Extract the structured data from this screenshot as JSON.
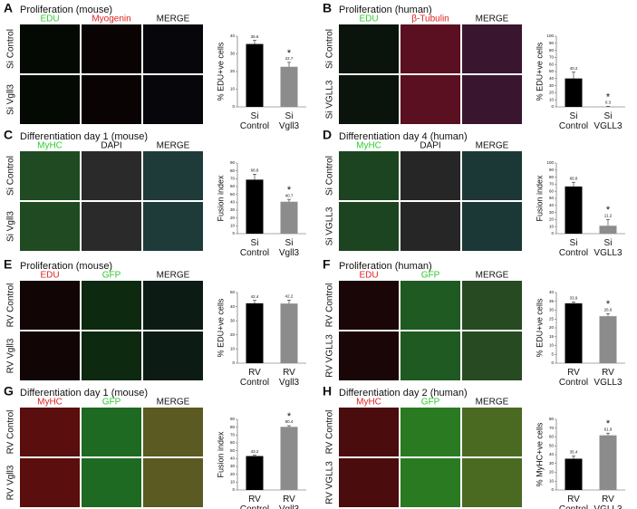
{
  "chart_data": [
    {
      "type": "bar",
      "panel": "A",
      "title": "Proliferation (mouse)",
      "image_columns": [
        {
          "label": "EDU",
          "color": "#2ecc2e"
        },
        {
          "label": "Myogenin",
          "color": "#e02020"
        },
        {
          "label": "MERGE",
          "color": "#111111"
        }
      ],
      "image_rows": [
        "Si Control",
        "Si Vgll3"
      ],
      "ylabel": "% EDU+ve cells",
      "categories": [
        "Si Control",
        "Si Vgll3"
      ],
      "values": [
        35.6,
        22.7
      ],
      "errors": [
        2,
        2.5
      ],
      "colors": [
        "#000000",
        "#8c8c8c"
      ],
      "ylim": [
        0,
        40
      ],
      "yticks": [
        0,
        10,
        20,
        30,
        40
      ],
      "annotations": [
        {
          "label": "*",
          "x": "Si Vgll3"
        }
      ]
    },
    {
      "type": "bar",
      "panel": "B",
      "title": "Proliferation (human)",
      "image_columns": [
        {
          "label": "EDU",
          "color": "#2ecc2e"
        },
        {
          "label": "β-Tubulin",
          "color": "#e02020"
        },
        {
          "label": "MERGE",
          "color": "#111111"
        }
      ],
      "image_rows": [
        "Si Control",
        "Si VGLL3"
      ],
      "ylabel": "% EDU+ve cells",
      "categories": [
        "Si Control",
        "Si VGLL3"
      ],
      "values": [
        40.2,
        0.3
      ],
      "errors": [
        9,
        0.5
      ],
      "colors": [
        "#000000",
        "#8c8c8c"
      ],
      "ylim": [
        0,
        100
      ],
      "yticks": [
        0,
        10,
        20,
        30,
        40,
        50,
        60,
        70,
        80,
        90,
        100
      ],
      "annotations": [
        {
          "label": "*",
          "x": "Si VGLL3"
        }
      ]
    },
    {
      "type": "bar",
      "panel": "C",
      "title": "Differentiation day 1 (mouse)",
      "image_columns": [
        {
          "label": "MyHC",
          "color": "#2ecc2e"
        },
        {
          "label": "DAPI",
          "color": "#111111"
        },
        {
          "label": "MERGE",
          "color": "#111111"
        }
      ],
      "image_rows": [
        "Si Control",
        "Si Vgll3"
      ],
      "ylabel": "Fusion index",
      "categories": [
        "Si Control",
        "Si Vgll3"
      ],
      "values": [
        68.8,
        40.7
      ],
      "errors": [
        7,
        3
      ],
      "colors": [
        "#000000",
        "#8c8c8c"
      ],
      "ylim": [
        0,
        90
      ],
      "yticks": [
        0,
        10,
        20,
        30,
        40,
        50,
        60,
        70,
        80,
        90
      ],
      "annotations": [
        {
          "label": "*",
          "x": "Si Vgll3"
        }
      ]
    },
    {
      "type": "bar",
      "panel": "D",
      "title": "Differentiation day 4 (human)",
      "image_columns": [
        {
          "label": "MyHC",
          "color": "#2ecc2e"
        },
        {
          "label": "DAPI",
          "color": "#111111"
        },
        {
          "label": "MERGE",
          "color": "#111111"
        }
      ],
      "image_rows": [
        "Si Control",
        "Si VGLL3"
      ],
      "ylabel": "Fusion index",
      "categories": [
        "Si Control",
        "Si VGLL3"
      ],
      "values": [
        66.8,
        11.2
      ],
      "errors": [
        6,
        9
      ],
      "colors": [
        "#000000",
        "#8c8c8c"
      ],
      "ylim": [
        0,
        100
      ],
      "yticks": [
        0,
        10,
        20,
        30,
        40,
        50,
        60,
        70,
        80,
        90,
        100
      ],
      "annotations": [
        {
          "label": "*",
          "x": "Si VGLL3"
        }
      ]
    },
    {
      "type": "bar",
      "panel": "E",
      "title": "Proliferation (mouse)",
      "image_columns": [
        {
          "label": "EDU",
          "color": "#e02020"
        },
        {
          "label": "GFP",
          "color": "#2ecc2e"
        },
        {
          "label": "MERGE",
          "color": "#111111"
        }
      ],
      "image_rows": [
        "RV Control",
        "RV Vgll3"
      ],
      "ylabel": "% EDU+ve cells",
      "categories": [
        "RV Control",
        "RV Vgll3"
      ],
      "values": [
        42.4,
        42.2
      ],
      "errors": [
        2,
        2.5
      ],
      "colors": [
        "#000000",
        "#8c8c8c"
      ],
      "ylim": [
        0,
        50
      ],
      "yticks": [
        0,
        10,
        20,
        30,
        40,
        50
      ]
    },
    {
      "type": "bar",
      "panel": "F",
      "title": "Proliferation (human)",
      "image_columns": [
        {
          "label": "EDU",
          "color": "#e02020"
        },
        {
          "label": "GFP",
          "color": "#2ecc2e"
        },
        {
          "label": "MERGE",
          "color": "#111111"
        }
      ],
      "image_rows": [
        "RV Control",
        "RV VGLL3"
      ],
      "ylabel": "% EDU+ve cells",
      "categories": [
        "RV Control",
        "RV VGLL3"
      ],
      "values": [
        33.9,
        26.6
      ],
      "errors": [
        0.8,
        1.5
      ],
      "colors": [
        "#000000",
        "#8c8c8c"
      ],
      "ylim": [
        0,
        40
      ],
      "yticks": [
        0,
        5,
        10,
        15,
        20,
        25,
        30,
        35,
        40
      ],
      "annotations": [
        {
          "label": "*",
          "x": "RV VGLL3"
        }
      ]
    },
    {
      "type": "bar",
      "panel": "G",
      "title": "Differentiation day 1 (mouse)",
      "image_columns": [
        {
          "label": "MyHC",
          "color": "#e02020"
        },
        {
          "label": "GFP",
          "color": "#2ecc2e"
        },
        {
          "label": "MERGE",
          "color": "#111111"
        }
      ],
      "image_rows": [
        "RV Control",
        "RV Vgll3"
      ],
      "ylabel": "Fusion index",
      "categories": [
        "RV Control",
        "RV Vgll3"
      ],
      "values": [
        43.2,
        80.4
      ],
      "errors": [
        1,
        1.5
      ],
      "colors": [
        "#000000",
        "#8c8c8c"
      ],
      "ylim": [
        0,
        90
      ],
      "yticks": [
        0,
        10,
        20,
        30,
        40,
        50,
        60,
        70,
        80,
        90
      ],
      "annotations": [
        {
          "label": "*",
          "x": "RV Vgll3"
        }
      ]
    },
    {
      "type": "bar",
      "panel": "H",
      "title": "Differentiation day 2 (human)",
      "image_columns": [
        {
          "label": "MyHC",
          "color": "#e02020"
        },
        {
          "label": "GFP",
          "color": "#2ecc2e"
        },
        {
          "label": "MERGE",
          "color": "#111111"
        }
      ],
      "image_rows": [
        "RV Control",
        "RV VGLL3"
      ],
      "ylabel": "% MyHC+ve cells",
      "categories": [
        "RV Control",
        "RV VGLL3"
      ],
      "values": [
        35.4,
        61.9
      ],
      "errors": [
        3,
        2.5
      ],
      "colors": [
        "#000000",
        "#8c8c8c"
      ],
      "ylim": [
        0,
        80
      ],
      "yticks": [
        0,
        10,
        20,
        30,
        40,
        50,
        60,
        70,
        80
      ],
      "annotations": [
        {
          "label": "*",
          "x": "RV VGLL3"
        }
      ]
    }
  ]
}
